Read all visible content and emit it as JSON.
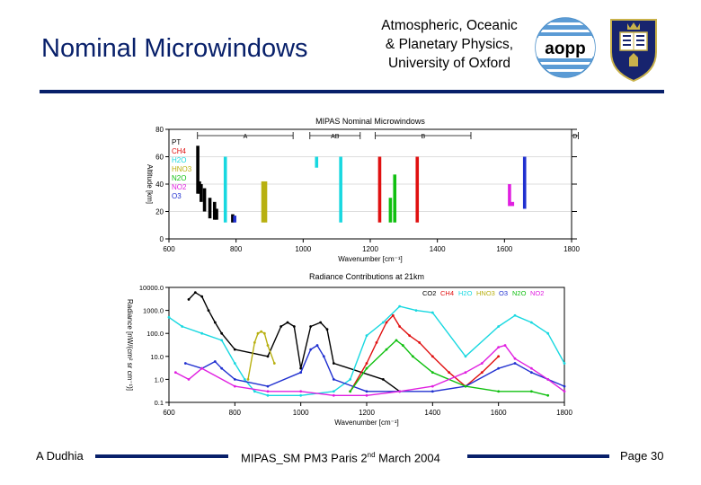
{
  "header": {
    "title": "Nominal Microwindows",
    "institute_lines": [
      "Atmospheric, Oceanic",
      "& Planetary Physics,",
      "University of Oxford"
    ],
    "logo_text": "aopp",
    "crest": "university-of-oxford-crest"
  },
  "footer": {
    "author": "A Dudhia",
    "event": "MIPAS_SM PM3 Paris 2",
    "event_sup": "nd",
    "event_tail": " March 2004",
    "page": "Page 30"
  },
  "colors": {
    "navy": "#08206a",
    "co2": "#000000",
    "ch4": "#e01010",
    "h2o": "#18d8e0",
    "hno3": "#b8b010",
    "n2o": "#10c010",
    "no2": "#e020e0",
    "o3": "#2030d0"
  },
  "chart_data": [
    {
      "type": "bar",
      "title": "MIPAS Nominal Microwindows",
      "xlabel": "Wavenumber [cm⁻¹]",
      "ylabel": "Altitude [km]",
      "xlim": [
        600,
        1800
      ],
      "ylim": [
        0,
        80
      ],
      "xticks": [
        600,
        800,
        1000,
        1200,
        1400,
        1600,
        1800
      ],
      "yticks": [
        0,
        20,
        40,
        60,
        80
      ],
      "bands": [
        {
          "label": "A",
          "range": [
            685,
            970
          ]
        },
        {
          "label": "AB",
          "range": [
            1020,
            1170
          ]
        },
        {
          "label": "B",
          "range": [
            1215,
            1500
          ]
        },
        {
          "label": "D",
          "range": [
            1820,
            1920
          ]
        }
      ],
      "legend": [
        "PT",
        "CH4",
        "H2O",
        "HNO3",
        "N2O",
        "NO2",
        "O3"
      ],
      "series_colors": [
        "#000000",
        "#e01010",
        "#18d8e0",
        "#b8b010",
        "#10c010",
        "#e020e0",
        "#2030d0"
      ],
      "microwindows": [
        {
          "gas": "PT",
          "x": 686,
          "top": 68,
          "bottom": 33
        },
        {
          "gas": "PT",
          "x": 691,
          "top": 42,
          "bottom": 33
        },
        {
          "gas": "PT",
          "x": 696,
          "top": 40,
          "bottom": 27
        },
        {
          "gas": "PT",
          "x": 706,
          "top": 37,
          "bottom": 20
        },
        {
          "gas": "PT",
          "x": 722,
          "top": 30,
          "bottom": 15
        },
        {
          "gas": "PT",
          "x": 736,
          "top": 27,
          "bottom": 14
        },
        {
          "gas": "PT",
          "x": 742,
          "top": 22,
          "bottom": 14
        },
        {
          "gas": "H2O",
          "x": 768,
          "top": 60,
          "bottom": 12
        },
        {
          "gas": "PT",
          "x": 790,
          "top": 18,
          "bottom": 12
        },
        {
          "gas": "O3",
          "x": 796,
          "top": 17,
          "bottom": 12
        },
        {
          "gas": "HNO3",
          "x": 880,
          "top": 42,
          "bottom": 12
        },
        {
          "gas": "HNO3",
          "x": 888,
          "top": 42,
          "bottom": 12
        },
        {
          "gas": "H2O",
          "x": 1040,
          "top": 60,
          "bottom": 52
        },
        {
          "gas": "H2O",
          "x": 1112,
          "top": 60,
          "bottom": 12
        },
        {
          "gas": "CH4",
          "x": 1228,
          "top": 60,
          "bottom": 12
        },
        {
          "gas": "N2O",
          "x": 1260,
          "top": 30,
          "bottom": 12
        },
        {
          "gas": "N2O",
          "x": 1273,
          "top": 47,
          "bottom": 12
        },
        {
          "gas": "CH4",
          "x": 1340,
          "top": 60,
          "bottom": 12
        },
        {
          "gas": "NO2",
          "x": 1615,
          "top": 40,
          "bottom": 24
        },
        {
          "gas": "NO2",
          "x": 1624,
          "top": 27,
          "bottom": 24
        },
        {
          "gas": "O3",
          "x": 1660,
          "top": 60,
          "bottom": 22
        }
      ]
    },
    {
      "type": "line",
      "title": "Radiance Contributions at 21km",
      "xlabel": "Wavenumber [cm⁻¹]",
      "ylabel": "Radiance [nW/(cm² sr cm⁻¹)]",
      "yscale": "log",
      "xlim": [
        600,
        1800
      ],
      "ylim": [
        0.1,
        10000
      ],
      "xticks": [
        600,
        800,
        1000,
        1200,
        1400,
        1600,
        1800
      ],
      "yticks": [
        0.1,
        1,
        10,
        100,
        1000,
        10000
      ],
      "ytick_labels": [
        "0.1",
        "1.0",
        "10.0",
        "100.0",
        "1000.0",
        "10000.0"
      ],
      "legend": [
        "CO2",
        "CH4",
        "H2O",
        "HNO3",
        "O3",
        "N2O",
        "NO2"
      ],
      "series": [
        {
          "name": "CO2",
          "color": "#000000",
          "x": [
            660,
            680,
            700,
            720,
            740,
            760,
            800,
            900,
            940,
            960,
            980,
            1000,
            1030,
            1060,
            1080,
            1100,
            1250,
            1300
          ],
          "y": [
            3000,
            6000,
            4000,
            1000,
            300,
            100,
            20,
            10,
            200,
            300,
            200,
            3,
            200,
            300,
            150,
            5,
            1,
            0.3
          ]
        },
        {
          "name": "CH4",
          "color": "#e01010",
          "x": [
            1150,
            1200,
            1230,
            1260,
            1280,
            1300,
            1330,
            1360,
            1400,
            1450,
            1500,
            1550,
            1600
          ],
          "y": [
            0.3,
            5,
            40,
            300,
            600,
            200,
            80,
            40,
            10,
            2,
            0.5,
            2,
            10
          ]
        },
        {
          "name": "H2O",
          "color": "#18d8e0",
          "x": [
            600,
            640,
            700,
            760,
            800,
            830,
            860,
            900,
            1000,
            1100,
            1150,
            1200,
            1250,
            1300,
            1350,
            1400,
            1500,
            1600,
            1650,
            1700,
            1750,
            1800
          ],
          "y": [
            500,
            200,
            100,
            50,
            5,
            1,
            0.3,
            0.2,
            0.2,
            0.3,
            1,
            80,
            300,
            1500,
            1000,
            800,
            10,
            200,
            600,
            300,
            100,
            5
          ]
        },
        {
          "name": "HNO3",
          "color": "#b8b010",
          "x": [
            840,
            860,
            870,
            880,
            890,
            900,
            920
          ],
          "y": [
            1,
            40,
            100,
            120,
            100,
            30,
            5
          ]
        },
        {
          "name": "O3",
          "color": "#2030d0",
          "x": [
            650,
            700,
            740,
            760,
            800,
            900,
            1000,
            1030,
            1050,
            1070,
            1100,
            1200,
            1300,
            1400,
            1500,
            1600,
            1650,
            1700,
            1750,
            1800
          ],
          "y": [
            5,
            3,
            6,
            3,
            1,
            0.5,
            2,
            20,
            30,
            10,
            1,
            0.3,
            0.3,
            0.3,
            0.5,
            3,
            5,
            2,
            1,
            0.5
          ]
        },
        {
          "name": "N2O",
          "color": "#10c010",
          "x": [
            1150,
            1200,
            1260,
            1290,
            1310,
            1340,
            1400,
            1500,
            1600,
            1700,
            1750
          ],
          "y": [
            0.3,
            3,
            20,
            50,
            30,
            10,
            2,
            0.5,
            0.3,
            0.3,
            0.2
          ]
        },
        {
          "name": "NO2",
          "color": "#e020e0",
          "x": [
            620,
            660,
            700,
            800,
            900,
            1000,
            1100,
            1200,
            1300,
            1400,
            1500,
            1550,
            1600,
            1620,
            1650,
            1700,
            1750,
            1800
          ],
          "y": [
            2,
            1,
            3,
            0.5,
            0.3,
            0.3,
            0.2,
            0.2,
            0.3,
            0.5,
            2,
            5,
            25,
            30,
            8,
            3,
            1,
            0.3
          ]
        }
      ]
    }
  ]
}
